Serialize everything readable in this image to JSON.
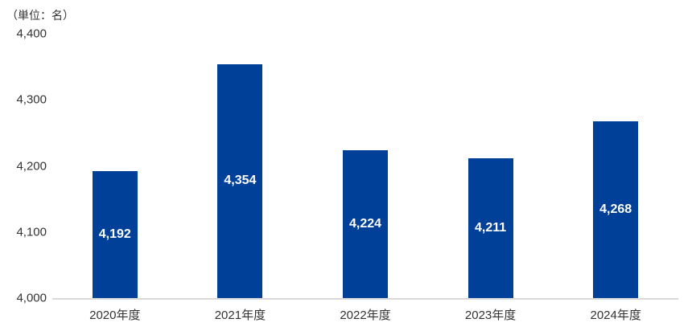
{
  "chart_data": {
    "type": "bar",
    "title": "（単位：名）",
    "title_meaning": "unit: persons",
    "categories": [
      "2020年度",
      "2021年度",
      "2022年度",
      "2023年度",
      "2024年度"
    ],
    "values": [
      4192,
      4354,
      4224,
      4211,
      4268
    ],
    "value_labels": [
      "4,192",
      "4,354",
      "4,224",
      "4,211",
      "4,268"
    ],
    "xlabel": "",
    "ylabel": "",
    "ylim": [
      4000,
      4400
    ],
    "yticks": [
      {
        "value": 4000,
        "label": "4,000"
      },
      {
        "value": 4100,
        "label": "4,100"
      },
      {
        "value": 4200,
        "label": "4,200"
      },
      {
        "value": 4300,
        "label": "4,300"
      },
      {
        "value": 4400,
        "label": "4,400"
      }
    ],
    "grid": false,
    "legend": false,
    "bar_label_position": "inside-center",
    "colors": {
      "bar": "#004098",
      "axis_line": "#d9d9d9",
      "tick_text": "#333333",
      "bar_label_text": "#ffffff"
    }
  }
}
